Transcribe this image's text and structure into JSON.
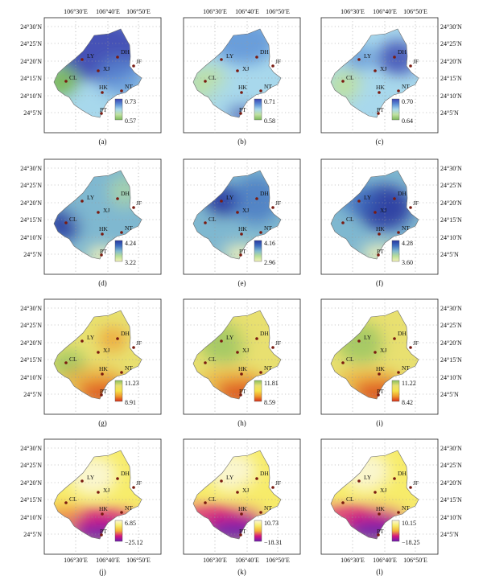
{
  "panels": [
    {
      "label": "(a)",
      "legend": {
        "max": "0.73",
        "min": "0.57"
      },
      "palette": "blue_green"
    },
    {
      "label": "(b)",
      "legend": {
        "max": "0.71",
        "min": "0.58"
      },
      "palette": "blue_green"
    },
    {
      "label": "(c)",
      "legend": {
        "max": "0.70",
        "min": "0.64"
      },
      "palette": "blue_green"
    },
    {
      "label": "(d)",
      "legend": {
        "max": "4.24",
        "min": "3.22"
      },
      "palette": "blue_yellow"
    },
    {
      "label": "(e)",
      "legend": {
        "max": "4.16",
        "min": "2.96"
      },
      "palette": "blue_yellow"
    },
    {
      "label": "(f)",
      "legend": {
        "max": "4.28",
        "min": "3.60"
      },
      "palette": "blue_yellow"
    },
    {
      "label": "(g)",
      "legend": {
        "max": "11.23",
        "min": "8.91"
      },
      "palette": "green_red"
    },
    {
      "label": "(h)",
      "legend": {
        "max": "11.81",
        "min": "8.59"
      },
      "palette": "green_red"
    },
    {
      "label": "(i)",
      "legend": {
        "max": "11.22",
        "min": "8.42"
      },
      "palette": "green_red"
    },
    {
      "label": "(j)",
      "legend": {
        "max": "6.85",
        "min": "−25.12"
      },
      "palette": "yellow_purple"
    },
    {
      "label": "(k)",
      "legend": {
        "max": "10.73",
        "min": "−18.31"
      },
      "palette": "yellow_purple"
    },
    {
      "label": "(l)",
      "legend": {
        "max": "10.15",
        "min": "−18.25"
      },
      "palette": "yellow_purple"
    }
  ],
  "lon_ticks": [
    "106°30′E",
    "106°40′E",
    "106°50′E"
  ],
  "lat_ticks": [
    "24°30′N",
    "24°25′N",
    "24°20′N",
    "24°15′N",
    "24°10′N",
    "24°5′N"
  ],
  "stations": [
    "LY",
    "DH",
    "JF",
    "XJ",
    "CL",
    "HK",
    "NT",
    "PT"
  ],
  "colors": {
    "station_dot": "#7a1a10",
    "grid": "#9a9a9a",
    "blue_green": [
      "#3a44b0",
      "#5b8ed6",
      "#a8d8ec",
      "#bfe1a0",
      "#7cb85a"
    ],
    "blue_yellow": [
      "#2838a0",
      "#3e6ec0",
      "#7fb8d0",
      "#b9df9a",
      "#f3f2b8"
    ],
    "green_red": [
      "#8cc060",
      "#e8e070",
      "#f5e24a",
      "#ef9a2e",
      "#d63018"
    ],
    "yellow_purple": [
      "#fbf7d8",
      "#f7ec6a",
      "#f4b238",
      "#d4167e",
      "#6a1ab0"
    ]
  }
}
